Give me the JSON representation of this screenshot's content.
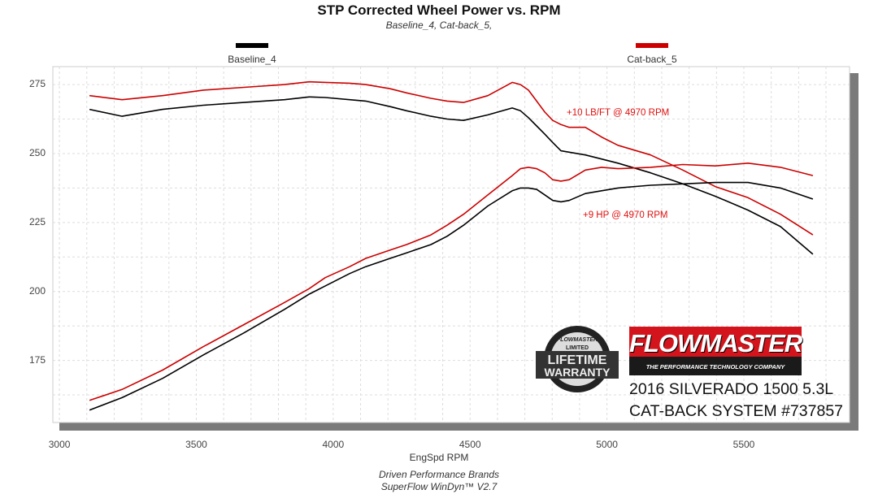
{
  "chart_data": {
    "type": "line",
    "title": "STP Corrected Wheel Power vs. RPM",
    "subtitle": "Baseline_4, Cat-back_5,",
    "xlabel": "EngSpd  RPM",
    "ylabel": "",
    "xlim": [
      2976,
      5886
    ],
    "ylim": [
      152.5,
      281.5
    ],
    "xticks": [
      3000,
      3500,
      4000,
      4500,
      5000,
      5500
    ],
    "yticks": [
      175,
      200,
      225,
      250,
      275
    ],
    "grid": true,
    "legend": [
      {
        "name": "Baseline_4",
        "color": "#000000"
      },
      {
        "name": "Cat-back_5",
        "color": "#cc0000"
      }
    ],
    "legend_position": "top",
    "x": [
      3110,
      3229,
      3377,
      3526,
      3674,
      3822,
      3912,
      3971,
      4060,
      4119,
      4208,
      4268,
      4357,
      4416,
      4476,
      4565,
      4654,
      4684,
      4713,
      4743,
      4773,
      4802,
      4832,
      4862,
      4921,
      4980,
      5040,
      5159,
      5277,
      5396,
      5515,
      5634,
      5752
    ],
    "series": [
      {
        "name": "Cat-back_5 Torque",
        "color": "#cc0000",
        "values": [
          271,
          269.5,
          271,
          273,
          274,
          275,
          276,
          275.8,
          275.5,
          275,
          273.5,
          272,
          270,
          269,
          268.5,
          271,
          275.8,
          275,
          273,
          269,
          265,
          262,
          260.5,
          259.5,
          259.5,
          256,
          253,
          249.5,
          244,
          238,
          234,
          228,
          220.5
        ]
      },
      {
        "name": "Baseline_4 Torque",
        "color": "#000000",
        "values": [
          266,
          263.5,
          266,
          267.5,
          268.5,
          269.5,
          270.5,
          270.3,
          269.5,
          269,
          267,
          265.5,
          263.5,
          262.5,
          262,
          264,
          266.5,
          265.5,
          263,
          260,
          257,
          254,
          251,
          250.5,
          249.5,
          248,
          246.5,
          243,
          239,
          234.5,
          229.5,
          223.5,
          213.5
        ]
      },
      {
        "name": "Cat-back_5 HP",
        "color": "#cc0000",
        "values": [
          160.5,
          164.5,
          171.5,
          180,
          188,
          196,
          201,
          205,
          209,
          212,
          215,
          217,
          220.5,
          224,
          228,
          235,
          242,
          244.5,
          245,
          244.5,
          243,
          240.5,
          240,
          240.5,
          244,
          245,
          244.5,
          245,
          246,
          245.5,
          246.5,
          245,
          242
        ]
      },
      {
        "name": "Baseline_4 HP",
        "color": "#000000",
        "values": [
          157,
          161.5,
          168.5,
          177,
          185,
          193.5,
          199,
          202,
          206.5,
          209,
          212,
          214,
          217,
          220,
          224,
          231,
          236.5,
          237.5,
          237.5,
          237,
          235,
          233,
          232.5,
          233,
          235.5,
          236.5,
          237.5,
          238.5,
          239,
          239.5,
          239.5,
          237.5,
          233.5
        ]
      }
    ],
    "annotations": [
      "+10 LB/FT @ 4970 RPM",
      "+9 HP @ 4970 RPM"
    ]
  },
  "logos": {
    "warranty_badge": [
      "STAINLESS STEEL",
      "FLOWMASTER",
      "LIMITED",
      "LIFETIME",
      "WARRANTY"
    ],
    "brand": "FLOWMASTER",
    "tagline": "THE PERFORMANCE TECHNOLOGY COMPANY"
  },
  "product": {
    "line1": "2016 SILVERADO 1500 5.3L",
    "line2": "CAT-BACK SYSTEM #737857"
  },
  "footer": {
    "line1": "Driven Performance Brands",
    "line2": "SuperFlow WinDyn™  V2.7"
  }
}
